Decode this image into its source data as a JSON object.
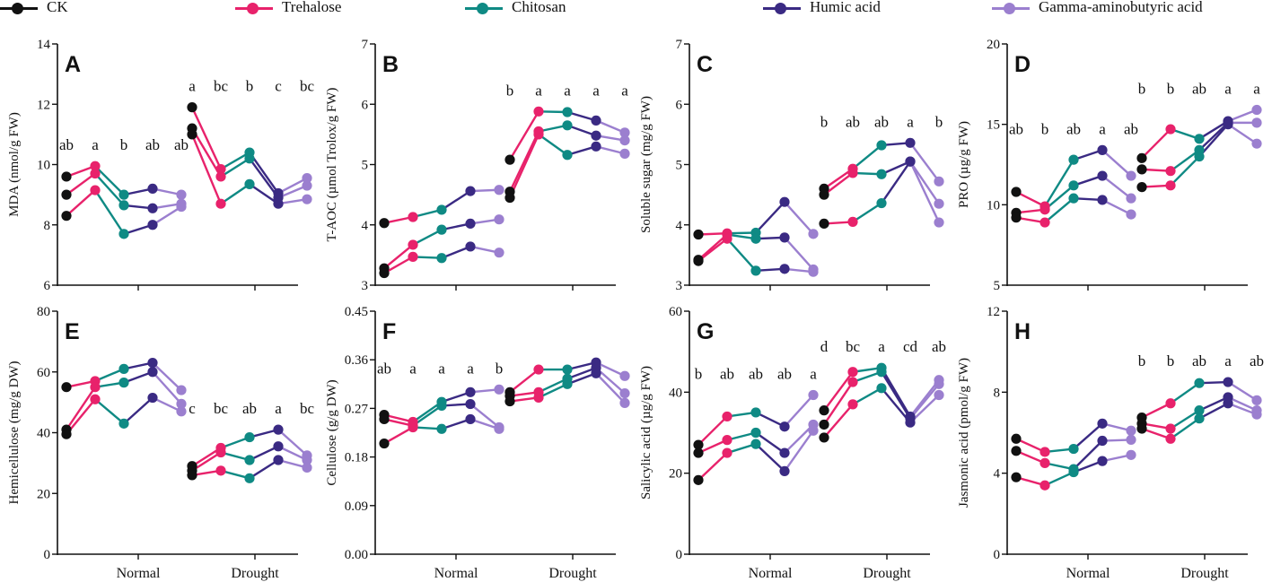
{
  "legend": [
    {
      "name": "CK",
      "color": "#111111"
    },
    {
      "name": "Trehalose",
      "color": "#e8226b"
    },
    {
      "name": "Chitosan",
      "color": "#0f8a84"
    },
    {
      "name": "Humic acid",
      "color": "#3a2a83"
    },
    {
      "name": "Gamma-aminobutyric acid",
      "color": "#9b7fcf"
    }
  ],
  "chart_data": [
    {
      "type": "line",
      "panel": "A",
      "title": "A",
      "ylabel": "MDA (nmol/g FW)",
      "ylim": [
        6,
        14
      ],
      "yticks": [
        "6",
        "8",
        "10",
        "12",
        "14"
      ],
      "groups": [
        "Normal",
        "Drought"
      ],
      "show_group_labels": false,
      "letters": {
        "Normal": [
          "ab",
          "a",
          "b",
          "ab",
          "ab"
        ],
        "Drought": [
          "a",
          "bc",
          "b",
          "c",
          "bc"
        ]
      },
      "series": [
        {
          "name": "CK",
          "Normal": [
            9.6,
            9.0,
            8.3
          ],
          "Drought": [
            11.9,
            11.2,
            11.0
          ]
        },
        {
          "name": "Trehalose",
          "Normal": [
            9.95,
            9.7,
            9.15
          ],
          "Drought": [
            9.85,
            9.6,
            8.7
          ]
        },
        {
          "name": "Chitosan",
          "Normal": [
            9.0,
            8.65,
            7.7
          ],
          "Drought": [
            10.4,
            10.2,
            9.35
          ]
        },
        {
          "name": "Humic acid",
          "Normal": [
            9.2,
            8.55,
            8.0
          ],
          "Drought": [
            9.05,
            8.9,
            8.7
          ]
        },
        {
          "name": "Gamma-aminobutyric acid",
          "Normal": [
            9.0,
            8.7,
            8.6
          ],
          "Drought": [
            9.55,
            9.3,
            8.85
          ]
        }
      ]
    },
    {
      "type": "line",
      "panel": "B",
      "title": "B",
      "ylabel": "T-AOC (µmol Trolox/g FW)",
      "ylim": [
        3,
        7
      ],
      "yticks": [
        "3",
        "4",
        "5",
        "6",
        "7"
      ],
      "groups": [
        "Normal",
        "Drought"
      ],
      "show_group_labels": false,
      "letters": {
        "Normal": [],
        "Drought": [
          "b",
          "a",
          "a",
          "a",
          "a"
        ]
      },
      "series": [
        {
          "name": "CK",
          "Normal": [
            4.03,
            3.28,
            3.2
          ],
          "Drought": [
            5.08,
            4.55,
            4.45
          ]
        },
        {
          "name": "Trehalose",
          "Normal": [
            4.13,
            3.67,
            3.47
          ],
          "Drought": [
            5.88,
            5.55,
            5.5
          ]
        },
        {
          "name": "Chitosan",
          "Normal": [
            4.25,
            3.92,
            3.45
          ],
          "Drought": [
            5.87,
            5.65,
            5.16
          ]
        },
        {
          "name": "Humic acid",
          "Normal": [
            4.56,
            4.02,
            3.64
          ],
          "Drought": [
            5.73,
            5.48,
            5.3
          ]
        },
        {
          "name": "Gamma-aminobutyric acid",
          "Normal": [
            4.58,
            4.09,
            3.54
          ],
          "Drought": [
            5.53,
            5.4,
            5.18
          ]
        }
      ]
    },
    {
      "type": "line",
      "panel": "C",
      "title": "C",
      "ylabel": "Soluble sugar (mg/g FW)",
      "ylim": [
        3,
        7
      ],
      "yticks": [
        "3",
        "4",
        "5",
        "6",
        "7"
      ],
      "groups": [
        "Normal",
        "Drought"
      ],
      "show_group_labels": false,
      "letters": {
        "Normal": [],
        "Drought": [
          "b",
          "ab",
          "ab",
          "a",
          "b"
        ]
      },
      "series": [
        {
          "name": "CK",
          "Normal": [
            3.84,
            3.42,
            3.4
          ],
          "Drought": [
            4.6,
            4.5,
            4.02
          ]
        },
        {
          "name": "Trehalose",
          "Normal": [
            3.86,
            3.84,
            3.77
          ],
          "Drought": [
            4.93,
            4.86,
            4.05
          ]
        },
        {
          "name": "Chitosan",
          "Normal": [
            3.87,
            3.77,
            3.24
          ],
          "Drought": [
            5.32,
            4.84,
            4.36
          ]
        },
        {
          "name": "Humic acid",
          "Normal": [
            4.38,
            3.79,
            3.27
          ],
          "Drought": [
            5.36,
            5.05,
            5.05
          ]
        },
        {
          "name": "Gamma-aminobutyric acid",
          "Normal": [
            3.85,
            3.26,
            3.22
          ],
          "Drought": [
            4.72,
            4.35,
            4.04
          ]
        }
      ]
    },
    {
      "type": "line",
      "panel": "D",
      "title": "D",
      "ylabel": "PRO  (µg/g FW)",
      "ylim": [
        5,
        20
      ],
      "yticks": [
        "5",
        "10",
        "15",
        "20"
      ],
      "groups": [
        "Normal",
        "Drought"
      ],
      "show_group_labels": false,
      "letters": {
        "Normal": [
          "ab",
          "b",
          "ab",
          "a",
          "ab"
        ],
        "Drought": [
          "b",
          "b",
          "ab",
          "a",
          "a"
        ]
      },
      "series": [
        {
          "name": "CK",
          "Normal": [
            10.8,
            9.5,
            9.2
          ],
          "Drought": [
            12.9,
            12.2,
            11.1
          ]
        },
        {
          "name": "Trehalose",
          "Normal": [
            9.9,
            9.7,
            8.9
          ],
          "Drought": [
            14.7,
            12.1,
            11.2
          ]
        },
        {
          "name": "Chitosan",
          "Normal": [
            12.8,
            11.2,
            10.4
          ],
          "Drought": [
            14.1,
            13.4,
            13.0
          ]
        },
        {
          "name": "Humic acid",
          "Normal": [
            13.4,
            11.8,
            10.3
          ],
          "Drought": [
            15.2,
            15.1,
            15.0
          ]
        },
        {
          "name": "Gamma-aminobutyric acid",
          "Normal": [
            11.8,
            10.4,
            9.4
          ],
          "Drought": [
            15.9,
            15.1,
            13.8
          ]
        }
      ]
    },
    {
      "type": "line",
      "panel": "E",
      "title": "E",
      "ylabel": "Hemicellulose (mg/g DW)",
      "ylim": [
        0,
        80
      ],
      "yticks": [
        "0",
        "20",
        "40",
        "60",
        "80"
      ],
      "groups": [
        "Normal",
        "Drought"
      ],
      "show_group_labels": true,
      "letters": {
        "Normal": [],
        "Drought": [
          "c",
          "bc",
          "ab",
          "a",
          "bc"
        ]
      },
      "series": [
        {
          "name": "CK",
          "Normal": [
            55,
            41,
            39.5
          ],
          "Drought": [
            29,
            27.5,
            26
          ]
        },
        {
          "name": "Trehalose",
          "Normal": [
            57,
            55,
            51
          ],
          "Drought": [
            35,
            33.5,
            27.5
          ]
        },
        {
          "name": "Chitosan",
          "Normal": [
            61,
            56.5,
            43
          ],
          "Drought": [
            38.5,
            31,
            25
          ]
        },
        {
          "name": "Humic acid",
          "Normal": [
            63,
            60,
            51.5
          ],
          "Drought": [
            41,
            35.5,
            31
          ]
        },
        {
          "name": "Gamma-aminobutyric acid",
          "Normal": [
            54,
            49.5,
            47
          ],
          "Drought": [
            32.5,
            31,
            28.5
          ]
        }
      ]
    },
    {
      "type": "line",
      "panel": "F",
      "title": "F",
      "ylabel": "Cellulose (g/g DW)",
      "ylim": [
        0,
        0.45
      ],
      "yticks": [
        "0.00",
        "0.09",
        "0.18",
        "0.27",
        "0.36",
        "0.45"
      ],
      "groups": [
        "Normal",
        "Drought"
      ],
      "show_group_labels": true,
      "letters": {
        "Normal": [
          "ab",
          "a",
          "a",
          "a",
          "b"
        ],
        "Drought": []
      },
      "series": [
        {
          "name": "CK",
          "Normal": [
            0.258,
            0.25,
            0.205
          ],
          "Drought": [
            0.3,
            0.293,
            0.283
          ]
        },
        {
          "name": "Trehalose",
          "Normal": [
            0.245,
            0.238,
            0.235
          ],
          "Drought": [
            0.342,
            0.3,
            0.29
          ]
        },
        {
          "name": "Chitosan",
          "Normal": [
            0.282,
            0.275,
            0.232
          ],
          "Drought": [
            0.342,
            0.325,
            0.315
          ]
        },
        {
          "name": "Humic acid",
          "Normal": [
            0.3,
            0.278,
            0.25
          ],
          "Drought": [
            0.355,
            0.345,
            0.335
          ]
        },
        {
          "name": "Gamma-aminobutyric acid",
          "Normal": [
            0.305,
            0.235,
            0.232
          ],
          "Drought": [
            0.33,
            0.298,
            0.28
          ]
        }
      ]
    },
    {
      "type": "line",
      "panel": "G",
      "title": "G",
      "ylabel": "Salicylic acid (µg/g FW)",
      "ylim": [
        0,
        60
      ],
      "yticks": [
        "0",
        "20",
        "40",
        "60"
      ],
      "groups": [
        "Normal",
        "Drought"
      ],
      "show_group_labels": true,
      "letters": {
        "Normal": [
          "b",
          "ab",
          "ab",
          "ab",
          "a"
        ],
        "Drought": [
          "d",
          "bc",
          "a",
          "cd",
          "ab"
        ]
      },
      "series": [
        {
          "name": "CK",
          "Normal": [
            27,
            25,
            18.3
          ],
          "Drought": [
            35.5,
            32,
            28.8
          ]
        },
        {
          "name": "Trehalose",
          "Normal": [
            34,
            28.2,
            25
          ],
          "Drought": [
            45,
            42.5,
            37
          ]
        },
        {
          "name": "Chitosan",
          "Normal": [
            35,
            30,
            27.2
          ],
          "Drought": [
            46,
            45,
            41
          ]
        },
        {
          "name": "Humic acid",
          "Normal": [
            31.5,
            25,
            20.5
          ],
          "Drought": [
            34,
            33.5,
            32.5
          ]
        },
        {
          "name": "Gamma-aminobutyric acid",
          "Normal": [
            39.3,
            32,
            30.5
          ],
          "Drought": [
            43,
            42,
            39.3
          ]
        }
      ]
    },
    {
      "type": "line",
      "panel": "H",
      "title": "H",
      "ylabel": "Jasmonic acid (pmol/g FW)",
      "ylim": [
        0,
        12
      ],
      "yticks": [
        "0",
        "4",
        "8",
        "12"
      ],
      "groups": [
        "Normal",
        "Drought"
      ],
      "show_group_labels": true,
      "letters": {
        "Normal": [],
        "Drought": [
          "b",
          "b",
          "ab",
          "a",
          "ab"
        ]
      },
      "series": [
        {
          "name": "CK",
          "Normal": [
            5.7,
            5.1,
            3.8
          ],
          "Drought": [
            6.75,
            6.45,
            6.2
          ]
        },
        {
          "name": "Trehalose",
          "Normal": [
            5.05,
            4.5,
            3.4
          ],
          "Drought": [
            7.45,
            6.2,
            5.7
          ]
        },
        {
          "name": "Chitosan",
          "Normal": [
            5.2,
            4.2,
            4.05
          ],
          "Drought": [
            8.45,
            7.1,
            6.7
          ]
        },
        {
          "name": "Humic acid",
          "Normal": [
            6.45,
            5.6,
            4.6
          ],
          "Drought": [
            8.5,
            7.75,
            7.45
          ]
        },
        {
          "name": "Gamma-aminobutyric acid",
          "Normal": [
            6.1,
            5.65,
            4.9
          ],
          "Drought": [
            7.6,
            7.1,
            6.9
          ]
        }
      ]
    }
  ]
}
